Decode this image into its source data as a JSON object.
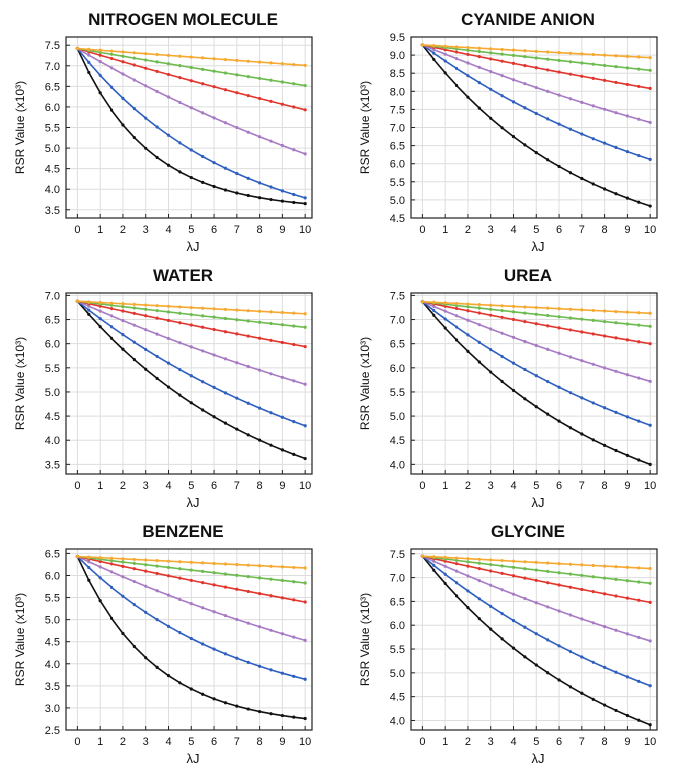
{
  "figure": {
    "x_range": [
      -0.5,
      10.3
    ],
    "colors": {
      "black": "#111111",
      "blue": "#2E5FBF",
      "purple": "#A77BC4",
      "red": "#E2352E",
      "green": "#6DBB4F",
      "orange": "#F6A931",
      "grid": "#DDDDDD",
      "frame": "#222222"
    },
    "series_order": [
      "black",
      "blue",
      "purple",
      "red",
      "green",
      "orange"
    ]
  },
  "chart_data": [
    {
      "type": "line",
      "title": "NITROGEN MOLECULE",
      "xlabel": "λJ",
      "ylabel": "RSR Value (x10³)",
      "xticks": [
        0,
        1,
        2,
        3,
        4,
        5,
        6,
        7,
        8,
        9,
        10
      ],
      "yticks": [
        "3.5",
        "4.0",
        "4.5",
        "5.0",
        "5.5",
        "6.0",
        "6.5",
        "7.0",
        "7.5"
      ],
      "ylim": [
        3.3,
        7.7
      ],
      "grid": true,
      "x_step": 0.5,
      "series": [
        {
          "color": "black",
          "start": 7.42,
          "end": 3.65,
          "k": 0.32
        },
        {
          "color": "blue",
          "start": 7.42,
          "end": 3.79,
          "k": 0.15
        },
        {
          "color": "purple",
          "start": 7.42,
          "end": 4.86,
          "k": 0.05
        },
        {
          "color": "red",
          "start": 7.42,
          "end": 5.93,
          "k": 0.02
        },
        {
          "color": "green",
          "start": 7.42,
          "end": 6.52,
          "k": 0.01
        },
        {
          "color": "orange",
          "start": 7.42,
          "end": 7.01,
          "k": 0.005
        }
      ]
    },
    {
      "type": "line",
      "title": "CYANIDE ANION",
      "xlabel": "λJ",
      "ylabel": "RSR Value (x10³)",
      "xticks": [
        0,
        1,
        2,
        3,
        4,
        5,
        6,
        7,
        8,
        9,
        10
      ],
      "yticks": [
        "4.5",
        "5.0",
        "5.5",
        "6.0",
        "6.5",
        "7.0",
        "7.5",
        "8.0",
        "8.5",
        "9.0",
        "9.5"
      ],
      "ylim": [
        4.5,
        9.5
      ],
      "grid": true,
      "x_step": 0.5,
      "series": [
        {
          "color": "black",
          "start": 9.28,
          "end": 4.83,
          "k": 0.14
        },
        {
          "color": "blue",
          "start": 9.28,
          "end": 6.12,
          "k": 0.08
        },
        {
          "color": "purple",
          "start": 9.28,
          "end": 7.14,
          "k": 0.04
        },
        {
          "color": "red",
          "start": 9.28,
          "end": 8.08,
          "k": 0.02
        },
        {
          "color": "green",
          "start": 9.28,
          "end": 8.58,
          "k": 0.01
        },
        {
          "color": "orange",
          "start": 9.28,
          "end": 8.93,
          "k": 0.005
        }
      ]
    },
    {
      "type": "line",
      "title": "WATER",
      "xlabel": "λJ",
      "ylabel": "RSR Value (x10³)",
      "xticks": [
        0,
        1,
        2,
        3,
        4,
        5,
        6,
        7,
        8,
        9,
        10
      ],
      "yticks": [
        "3.5",
        "4.0",
        "4.5",
        "5.0",
        "5.5",
        "6.0",
        "6.5",
        "7.0"
      ],
      "ylim": [
        3.3,
        7.05
      ],
      "grid": true,
      "x_step": 0.5,
      "series": [
        {
          "color": "black",
          "start": 6.88,
          "end": 3.62,
          "k": 0.12
        },
        {
          "color": "blue",
          "start": 6.88,
          "end": 4.3,
          "k": 0.08
        },
        {
          "color": "purple",
          "start": 6.88,
          "end": 5.16,
          "k": 0.04
        },
        {
          "color": "red",
          "start": 6.88,
          "end": 5.94,
          "k": 0.02
        },
        {
          "color": "green",
          "start": 6.88,
          "end": 6.34,
          "k": 0.01
        },
        {
          "color": "orange",
          "start": 6.88,
          "end": 6.62,
          "k": 0.005
        }
      ]
    },
    {
      "type": "line",
      "title": "UREA",
      "xlabel": "λJ",
      "ylabel": "RSR Value (x10³)",
      "xticks": [
        0,
        1,
        2,
        3,
        4,
        5,
        6,
        7,
        8,
        9,
        10
      ],
      "yticks": [
        "4.0",
        "4.5",
        "5.0",
        "5.5",
        "6.0",
        "6.5",
        "7.0",
        "7.5"
      ],
      "ylim": [
        3.8,
        7.55
      ],
      "grid": true,
      "x_step": 0.5,
      "series": [
        {
          "color": "black",
          "start": 7.37,
          "end": 4.0,
          "k": 0.12
        },
        {
          "color": "blue",
          "start": 7.37,
          "end": 4.81,
          "k": 0.08
        },
        {
          "color": "purple",
          "start": 7.37,
          "end": 5.72,
          "k": 0.04
        },
        {
          "color": "red",
          "start": 7.37,
          "end": 6.5,
          "k": 0.02
        },
        {
          "color": "green",
          "start": 7.37,
          "end": 6.86,
          "k": 0.01
        },
        {
          "color": "orange",
          "start": 7.37,
          "end": 7.13,
          "k": 0.005
        }
      ]
    },
    {
      "type": "line",
      "title": "BENZENE",
      "xlabel": "λJ",
      "ylabel": "RSR Value (x10³)",
      "xticks": [
        0,
        1,
        2,
        3,
        4,
        5,
        6,
        7,
        8,
        9,
        10
      ],
      "yticks": [
        "2.5",
        "3.0",
        "3.5",
        "4.0",
        "4.5",
        "5.0",
        "5.5",
        "6.0",
        "6.5"
      ],
      "ylim": [
        2.5,
        6.6
      ],
      "grid": true,
      "x_step": 0.5,
      "series": [
        {
          "color": "black",
          "start": 6.43,
          "end": 2.76,
          "k": 0.3
        },
        {
          "color": "blue",
          "start": 6.43,
          "end": 3.65,
          "k": 0.14
        },
        {
          "color": "purple",
          "start": 6.43,
          "end": 4.53,
          "k": 0.05
        },
        {
          "color": "red",
          "start": 6.43,
          "end": 5.4,
          "k": 0.02
        },
        {
          "color": "green",
          "start": 6.43,
          "end": 5.83,
          "k": 0.01
        },
        {
          "color": "orange",
          "start": 6.43,
          "end": 6.17,
          "k": 0.005
        }
      ]
    },
    {
      "type": "line",
      "title": "GLYCINE",
      "xlabel": "λJ",
      "ylabel": "RSR Value (x10³)",
      "xticks": [
        0,
        1,
        2,
        3,
        4,
        5,
        6,
        7,
        8,
        9,
        10
      ],
      "yticks": [
        "4.0",
        "4.5",
        "5.0",
        "5.5",
        "6.0",
        "6.5",
        "7.0",
        "7.5"
      ],
      "ylim": [
        3.8,
        7.6
      ],
      "grid": true,
      "x_step": 0.5,
      "series": [
        {
          "color": "black",
          "start": 7.45,
          "end": 3.91,
          "k": 0.12
        },
        {
          "color": "blue",
          "start": 7.45,
          "end": 4.73,
          "k": 0.08
        },
        {
          "color": "purple",
          "start": 7.45,
          "end": 5.67,
          "k": 0.04
        },
        {
          "color": "red",
          "start": 7.45,
          "end": 6.48,
          "k": 0.02
        },
        {
          "color": "green",
          "start": 7.45,
          "end": 6.88,
          "k": 0.01
        },
        {
          "color": "orange",
          "start": 7.45,
          "end": 7.19,
          "k": 0.005
        }
      ]
    }
  ]
}
